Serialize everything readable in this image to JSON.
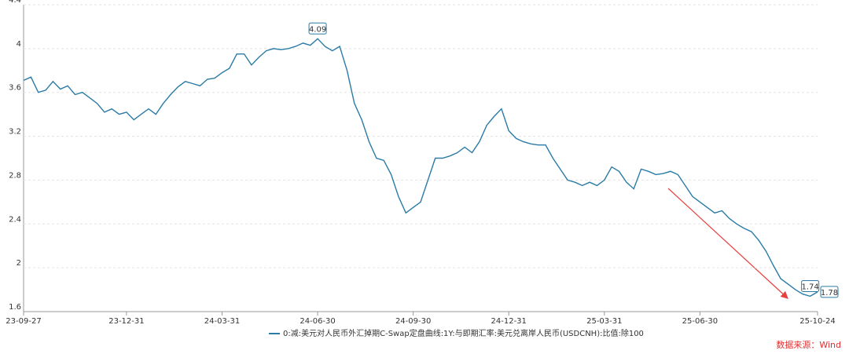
{
  "chart_data": {
    "type": "line",
    "categories": [
      "23-09-27",
      null,
      null,
      null,
      null,
      null,
      null,
      null,
      null,
      null,
      null,
      null,
      null,
      null,
      "23-12-31",
      null,
      null,
      null,
      null,
      null,
      null,
      null,
      null,
      null,
      null,
      null,
      null,
      "24-03-31",
      null,
      null,
      null,
      null,
      null,
      null,
      null,
      null,
      null,
      null,
      null,
      null,
      "24-06-30",
      null,
      null,
      null,
      null,
      null,
      null,
      null,
      null,
      null,
      null,
      null,
      null,
      "24-09-30",
      null,
      null,
      null,
      null,
      null,
      null,
      null,
      null,
      null,
      null,
      null,
      null,
      "24-12-31",
      null,
      null,
      null,
      null,
      null,
      null,
      null,
      null,
      null,
      null,
      null,
      null,
      "25-03-31",
      null,
      null,
      null,
      null,
      null,
      null,
      null,
      null,
      null,
      null,
      null,
      null,
      "25-06-30",
      null,
      null,
      null,
      null,
      null,
      null,
      null,
      null,
      null,
      null,
      null,
      null,
      null,
      null,
      null,
      "25-10-24"
    ],
    "series": [
      {
        "name": "0:减:美元对人民币外汇掉期C-Swap定盘曲线:1Y:与即期汇率:美元兑离岸人民币(USDCNH):比值:除100",
        "color": "#2a7ba6",
        "values": [
          3.71,
          3.74,
          3.6,
          3.62,
          3.7,
          3.63,
          3.66,
          3.58,
          3.6,
          3.55,
          3.5,
          3.42,
          3.45,
          3.4,
          3.42,
          3.35,
          3.4,
          3.45,
          3.4,
          3.5,
          3.58,
          3.65,
          3.7,
          3.68,
          3.66,
          3.72,
          3.73,
          3.78,
          3.82,
          3.95,
          3.95,
          3.85,
          3.92,
          3.98,
          4,
          3.99,
          4,
          4.02,
          4.05,
          4.03,
          4.09,
          4.02,
          3.98,
          4.02,
          3.8,
          3.5,
          3.35,
          3.15,
          3,
          2.98,
          2.85,
          2.65,
          2.5,
          2.55,
          2.6,
          2.8,
          3,
          3,
          3.02,
          3.05,
          3.1,
          3.05,
          3.15,
          3.3,
          3.38,
          3.45,
          3.25,
          3.18,
          3.15,
          3.13,
          3.12,
          3.12,
          3,
          2.9,
          2.8,
          2.78,
          2.75,
          2.78,
          2.75,
          2.8,
          2.92,
          2.88,
          2.78,
          2.72,
          2.9,
          2.88,
          2.85,
          2.86,
          2.88,
          2.85,
          2.75,
          2.65,
          2.6,
          2.55,
          2.5,
          2.52,
          2.45,
          2.4,
          2.36,
          2.33,
          2.25,
          2.15,
          2.02,
          1.9,
          1.85,
          1.8,
          1.76,
          1.74,
          1.78
        ]
      }
    ],
    "ylim": [
      1.6,
      4.4
    ],
    "yticks": [
      1.6,
      2,
      2.4,
      2.8,
      3.2,
      3.6,
      4,
      4.4
    ],
    "grid": true,
    "source": "数据来源：Wind"
  }
}
